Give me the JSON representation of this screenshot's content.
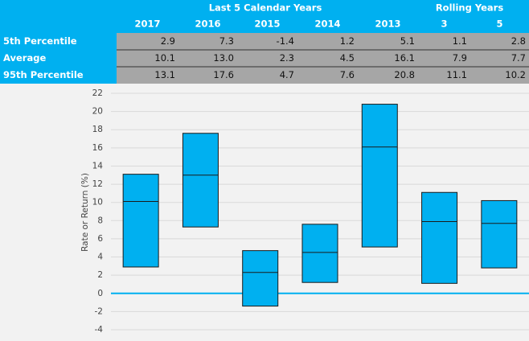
{
  "chart_data": {
    "type": "box",
    "groups": [
      "Last 5 Calendar Years",
      "Rolling Years"
    ],
    "categories": [
      "2017",
      "2016",
      "2015",
      "2014",
      "2013",
      "3",
      "5"
    ],
    "series": [
      {
        "name": "5th Percentile",
        "values": [
          2.9,
          7.3,
          -1.4,
          1.2,
          5.1,
          1.1,
          2.8
        ],
        "value_labels": [
          "2.9",
          "7.3",
          "-1.4",
          "1.2",
          "5.1",
          "1.1",
          "2.8"
        ]
      },
      {
        "name": "Average",
        "values": [
          10.1,
          13.0,
          2.3,
          4.5,
          16.1,
          7.9,
          7.7
        ],
        "value_labels": [
          "10.1",
          "13.0",
          "2.3",
          "4.5",
          "16.1",
          "7.9",
          "7.7"
        ]
      },
      {
        "name": "95th Percentile",
        "values": [
          13.1,
          17.6,
          4.7,
          7.6,
          20.8,
          11.1,
          10.2
        ],
        "value_labels": [
          "13.1",
          "17.6",
          "4.7",
          "7.6",
          "20.8",
          "11.1",
          "10.2"
        ]
      }
    ],
    "color": "#00b0f0",
    "y_label": "Rate or Return (%)",
    "ylim": [
      -4,
      22
    ],
    "yticks": [
      -4,
      -2,
      0,
      2,
      4,
      6,
      8,
      10,
      12,
      14,
      16,
      18,
      20,
      22
    ],
    "grid": true
  }
}
